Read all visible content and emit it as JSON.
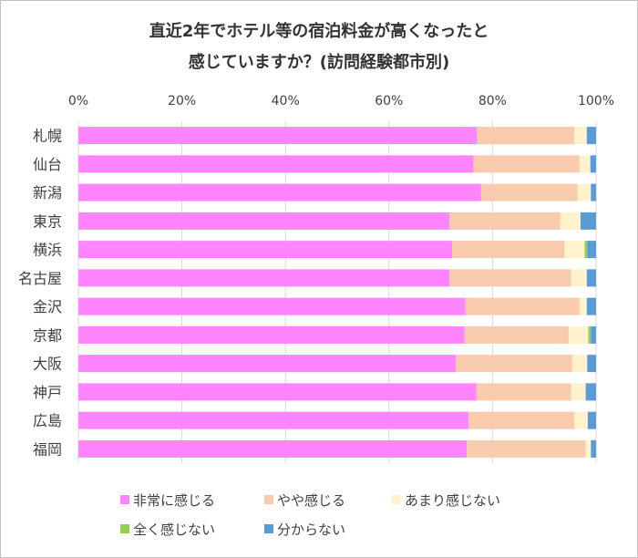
{
  "chart_data": {
    "type": "bar",
    "orientation": "horizontal",
    "stacked": true,
    "percent": true,
    "title_line1": "直近2年でホテル等の宿泊料金が高くなったと",
    "title_line2": "感じていますか？(訪問経験都市別)",
    "xlabel": "",
    "ylabel": "",
    "xlim": [
      0,
      100
    ],
    "x_ticks": [
      "0%",
      "20%",
      "40%",
      "60%",
      "80%",
      "100%"
    ],
    "categories": [
      "札幌",
      "仙台",
      "新潟",
      "東京",
      "横浜",
      "名古屋",
      "金沢",
      "京都",
      "大阪",
      "神戸",
      "広島",
      "福岡"
    ],
    "series": [
      {
        "name": "非常に感じる",
        "color": "#ff85ff",
        "values": [
          77,
          76.3,
          77.8,
          71.7,
          72.2,
          71.7,
          74.8,
          74.6,
          72.9,
          76.9,
          75.4,
          75
        ]
      },
      {
        "name": "やや感じる",
        "color": "#f8cbad",
        "values": [
          18.8,
          20.5,
          18.6,
          21.4,
          21.7,
          23.5,
          22,
          20.1,
          22.5,
          18.3,
          20.4,
          23
        ]
      },
      {
        "name": "あまり感じない",
        "color": "#fff2cc",
        "values": [
          2.4,
          2.1,
          2.6,
          3.9,
          3.9,
          3,
          1.4,
          3.8,
          2.9,
          2.8,
          2.6,
          1
        ]
      },
      {
        "name": "全く感じない",
        "color": "#92d050",
        "values": [
          0,
          0,
          0,
          0,
          0.5,
          0,
          0,
          0.5,
          0,
          0,
          0,
          0
        ]
      },
      {
        "name": "分からない",
        "color": "#5b9bd5",
        "values": [
          1.8,
          1.1,
          1,
          3,
          1.7,
          1.8,
          1.8,
          1,
          1.7,
          2,
          1.6,
          1
        ]
      }
    ],
    "legend_position": "bottom",
    "grid": true
  }
}
